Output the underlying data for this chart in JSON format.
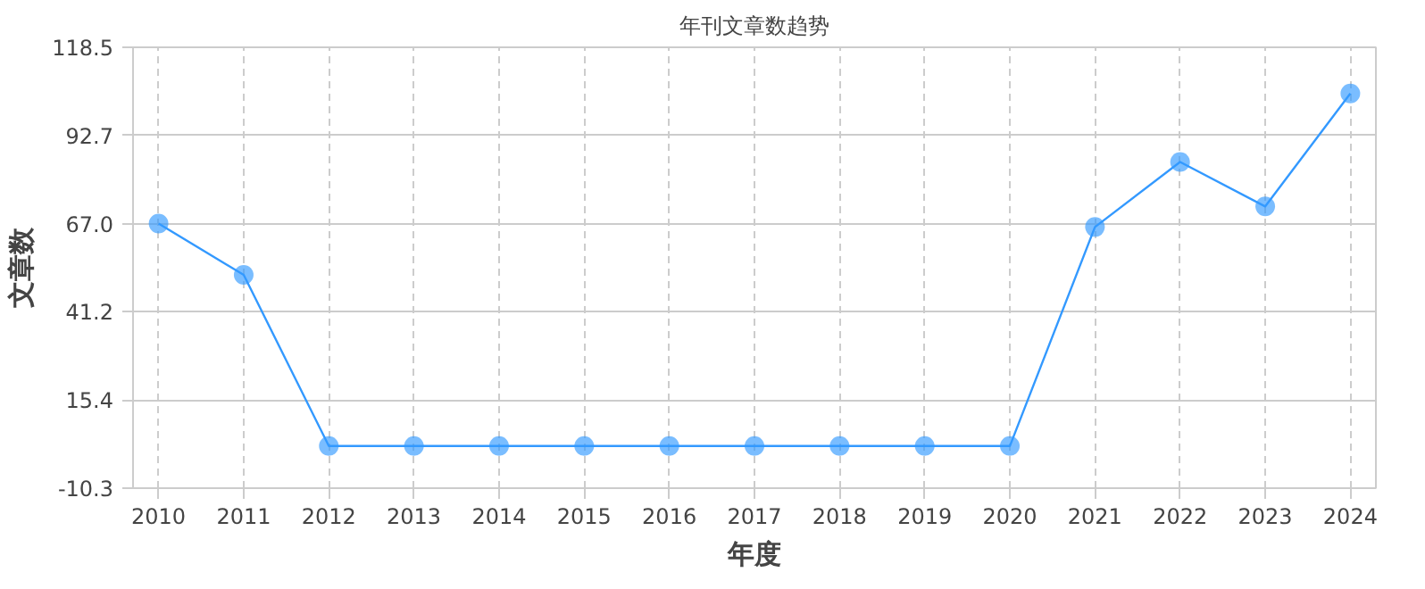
{
  "chart_data": {
    "type": "line",
    "title": "年刊文章数趋势",
    "xlabel": "年度",
    "ylabel": "文章数",
    "x": [
      2010,
      2011,
      2012,
      2013,
      2014,
      2015,
      2016,
      2017,
      2018,
      2019,
      2020,
      2021,
      2022,
      2023,
      2024
    ],
    "series": [
      {
        "color": "#3399ff",
        "values": [
          67,
          52,
          2,
          2,
          2,
          2,
          2,
          2,
          2,
          2,
          2,
          66,
          85,
          72,
          105
        ]
      }
    ],
    "xlim": [
      2009.7,
      2024.3
    ],
    "xticks": [
      2010,
      2011,
      2012,
      2013,
      2014,
      2015,
      2016,
      2017,
      2018,
      2019,
      2020,
      2021,
      2022,
      2023,
      2024
    ],
    "ylim": [
      -10.3,
      118.5
    ],
    "yticks": [
      {
        "value": -10.3,
        "label": "-10.3"
      },
      {
        "value": 15.4,
        "label": "15.4"
      },
      {
        "value": 41.2,
        "label": "41.2"
      },
      {
        "value": 67.0,
        "label": "67.0"
      },
      {
        "value": 92.7,
        "label": "92.7"
      },
      {
        "value": 118.5,
        "label": "118.5"
      }
    ],
    "grid": true,
    "marker": "circle",
    "line_style": "solid"
  }
}
